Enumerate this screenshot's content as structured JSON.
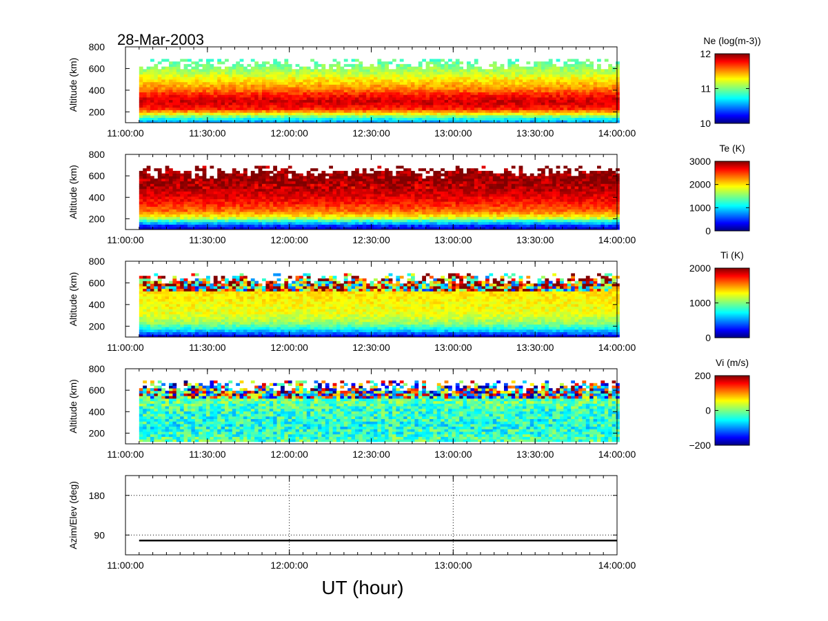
{
  "figure": {
    "date_title": "28-Mar-2003",
    "xlabel": "UT (hour)"
  },
  "chart_data": [
    {
      "type": "heatmap",
      "id": "ne",
      "ylabel": "Altitude (km)",
      "ylim": [
        100,
        800
      ],
      "yticks": [
        200,
        400,
        600,
        800
      ],
      "xlim": [
        "11:00:00",
        "14:00:00"
      ],
      "xticks": [
        "11:00:00",
        "11:30:00",
        "12:00:00",
        "12:30:00",
        "13:00:00",
        "13:30:00",
        "14:00:00"
      ],
      "data_time_range": [
        "11:05:00",
        "14:00:00"
      ],
      "data_alt_range": [
        100,
        680
      ],
      "colorbar": {
        "label": "Ne (log(m-3))",
        "min": 10,
        "max": 12,
        "ticks": [
          "10",
          "11",
          "12"
        ]
      },
      "profile_by_altitude": [
        {
          "alt": 100,
          "value": 10.6
        },
        {
          "alt": 140,
          "value": 10.9
        },
        {
          "alt": 180,
          "value": 11.35
        },
        {
          "alt": 220,
          "value": 11.7
        },
        {
          "alt": 280,
          "value": 11.85
        },
        {
          "alt": 330,
          "value": 11.75
        },
        {
          "alt": 400,
          "value": 11.5
        },
        {
          "alt": 480,
          "value": 11.3
        },
        {
          "alt": 560,
          "value": 11.1
        },
        {
          "alt": 640,
          "value": 10.95
        },
        {
          "alt": 680,
          "value": 10.9
        }
      ]
    },
    {
      "type": "heatmap",
      "id": "te",
      "ylabel": "Altitude (km)",
      "ylim": [
        100,
        800
      ],
      "yticks": [
        200,
        400,
        600,
        800
      ],
      "xlim": [
        "11:00:00",
        "14:00:00"
      ],
      "xticks": [
        "11:00:00",
        "11:30:00",
        "12:00:00",
        "12:30:00",
        "13:00:00",
        "13:30:00",
        "14:00:00"
      ],
      "data_time_range": [
        "11:05:00",
        "14:00:00"
      ],
      "data_alt_range": [
        100,
        680
      ],
      "colorbar": {
        "label": "Te (K)",
        "min": 0,
        "max": 3000,
        "ticks": [
          "0",
          "1000",
          "2000",
          "3000"
        ]
      },
      "profile_by_altitude": [
        {
          "alt": 100,
          "value": 300
        },
        {
          "alt": 130,
          "value": 600
        },
        {
          "alt": 160,
          "value": 1100
        },
        {
          "alt": 200,
          "value": 1800
        },
        {
          "alt": 260,
          "value": 2300
        },
        {
          "alt": 350,
          "value": 2600
        },
        {
          "alt": 450,
          "value": 2800
        },
        {
          "alt": 550,
          "value": 2950
        },
        {
          "alt": 680,
          "value": 3000
        }
      ]
    },
    {
      "type": "heatmap",
      "id": "ti",
      "ylabel": "Altitude (km)",
      "ylim": [
        100,
        800
      ],
      "yticks": [
        200,
        400,
        600,
        800
      ],
      "xlim": [
        "11:00:00",
        "14:00:00"
      ],
      "xticks": [
        "11:00:00",
        "11:30:00",
        "12:00:00",
        "12:30:00",
        "13:00:00",
        "13:30:00",
        "14:00:00"
      ],
      "data_time_range": [
        "11:05:00",
        "14:00:00"
      ],
      "data_alt_range": [
        100,
        680
      ],
      "colorbar": {
        "label": "Ti (K)",
        "min": 0,
        "max": 2000,
        "ticks": [
          "0",
          "1000",
          "2000"
        ]
      },
      "profile_by_altitude": [
        {
          "alt": 100,
          "value": 200
        },
        {
          "alt": 130,
          "value": 500
        },
        {
          "alt": 170,
          "value": 800
        },
        {
          "alt": 220,
          "value": 1050
        },
        {
          "alt": 300,
          "value": 1200
        },
        {
          "alt": 400,
          "value": 1250
        },
        {
          "alt": 500,
          "value": 1300
        },
        {
          "alt": 600,
          "value": 1400
        },
        {
          "alt": 680,
          "value": 1500
        }
      ]
    },
    {
      "type": "heatmap",
      "id": "vi",
      "ylabel": "Altitude (km)",
      "ylim": [
        100,
        800
      ],
      "yticks": [
        200,
        400,
        600,
        800
      ],
      "xlim": [
        "11:00:00",
        "14:00:00"
      ],
      "xticks": [
        "11:00:00",
        "11:30:00",
        "12:00:00",
        "12:30:00",
        "13:00:00",
        "13:30:00",
        "14:00:00"
      ],
      "data_time_range": [
        "11:05:00",
        "14:00:00"
      ],
      "data_alt_range": [
        120,
        680
      ],
      "colorbar": {
        "label": "Vi (m/s)",
        "min": -200,
        "max": 200,
        "ticks": [
          "-200",
          "0",
          "200"
        ]
      },
      "profile_by_altitude": [
        {
          "alt": 120,
          "value": -20
        },
        {
          "alt": 250,
          "value": -40
        },
        {
          "alt": 400,
          "value": -30
        },
        {
          "alt": 500,
          "value": -10
        },
        {
          "alt": 600,
          "value": 0
        },
        {
          "alt": 680,
          "value": 0
        }
      ]
    },
    {
      "type": "line",
      "id": "azel",
      "ylabel": "Azim/Elev (deg)",
      "ylim": [
        45,
        225
      ],
      "yticks": [
        90,
        180
      ],
      "xlim": [
        "11:00:00",
        "14:00:00"
      ],
      "xticks": [
        "11:00:00",
        "12:00:00",
        "13:00:00",
        "14:00:00"
      ],
      "grid": "dotted",
      "series": [
        {
          "x": [
            "11:05:00",
            "14:00:00"
          ],
          "y": [
            77.5,
            77.5
          ]
        }
      ]
    }
  ]
}
